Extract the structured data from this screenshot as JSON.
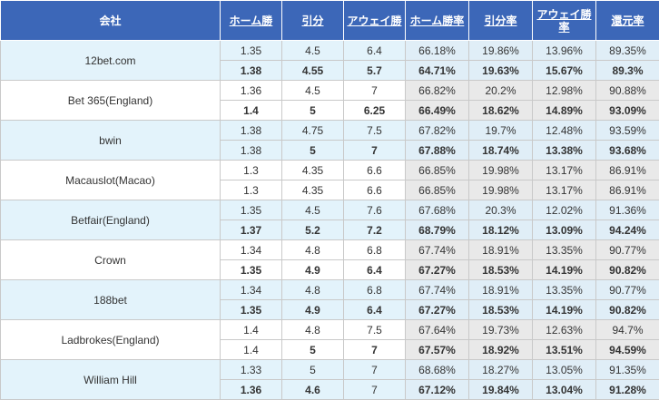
{
  "headers": {
    "company": "会社",
    "home": "ホーム勝",
    "draw": "引分",
    "away": "アウェイ勝",
    "home_rate": "ホーム勝率",
    "draw_rate": "引分率",
    "away_rate": "アウェイ勝率",
    "return_rate": "還元率"
  },
  "colors": {
    "header_bg": "#3c67b8",
    "up": "#c00000",
    "down": "#1f8a1f",
    "alt_row": "#e3f3fb"
  },
  "rows": [
    {
      "company": "12bet.com",
      "initial": {
        "home": "1.35",
        "draw": "4.5",
        "away": "6.4",
        "home_rate": "66.18%",
        "draw_rate": "19.86%",
        "away_rate": "13.96%",
        "return_rate": "89.35%"
      },
      "live": {
        "home": "1.38",
        "draw": "4.55",
        "away": "5.7",
        "home_rate": "64.71%",
        "draw_rate": "19.63%",
        "away_rate": "15.67%",
        "return_rate": "89.3%"
      },
      "trend": {
        "home": "red",
        "draw": "red",
        "away": "green",
        "home_rate": "green",
        "draw_rate": "green",
        "away_rate": "red",
        "return_rate": "green"
      }
    },
    {
      "company": "Bet 365(England)",
      "initial": {
        "home": "1.36",
        "draw": "4.5",
        "away": "7",
        "home_rate": "66.82%",
        "draw_rate": "20.2%",
        "away_rate": "12.98%",
        "return_rate": "90.88%"
      },
      "live": {
        "home": "1.4",
        "draw": "5",
        "away": "6.25",
        "home_rate": "66.49%",
        "draw_rate": "18.62%",
        "away_rate": "14.89%",
        "return_rate": "93.09%"
      },
      "trend": {
        "home": "red",
        "draw": "red",
        "away": "green",
        "home_rate": "green",
        "draw_rate": "green",
        "away_rate": "red",
        "return_rate": "red"
      }
    },
    {
      "company": "bwin",
      "initial": {
        "home": "1.38",
        "draw": "4.75",
        "away": "7.5",
        "home_rate": "67.82%",
        "draw_rate": "19.7%",
        "away_rate": "12.48%",
        "return_rate": "93.59%"
      },
      "live": {
        "home": "1.38",
        "draw": "5",
        "away": "7",
        "home_rate": "67.88%",
        "draw_rate": "18.74%",
        "away_rate": "13.38%",
        "return_rate": "93.68%"
      },
      "trend": {
        "home": "",
        "draw": "red",
        "away": "green",
        "home_rate": "red",
        "draw_rate": "green",
        "away_rate": "red",
        "return_rate": "red"
      }
    },
    {
      "company": "Macauslot(Macao)",
      "initial": {
        "home": "1.3",
        "draw": "4.35",
        "away": "6.6",
        "home_rate": "66.85%",
        "draw_rate": "19.98%",
        "away_rate": "13.17%",
        "return_rate": "86.91%"
      },
      "live": {
        "home": "1.3",
        "draw": "4.35",
        "away": "6.6",
        "home_rate": "66.85%",
        "draw_rate": "19.98%",
        "away_rate": "13.17%",
        "return_rate": "86.91%"
      },
      "trend": {
        "home": "",
        "draw": "",
        "away": "",
        "home_rate": "",
        "draw_rate": "",
        "away_rate": "",
        "return_rate": ""
      }
    },
    {
      "company": "Betfair(England)",
      "initial": {
        "home": "1.35",
        "draw": "4.5",
        "away": "7.6",
        "home_rate": "67.68%",
        "draw_rate": "20.3%",
        "away_rate": "12.02%",
        "return_rate": "91.36%"
      },
      "live": {
        "home": "1.37",
        "draw": "5.2",
        "away": "7.2",
        "home_rate": "68.79%",
        "draw_rate": "18.12%",
        "away_rate": "13.09%",
        "return_rate": "94.24%"
      },
      "trend": {
        "home": "red",
        "draw": "red",
        "away": "green",
        "home_rate": "red",
        "draw_rate": "green",
        "away_rate": "red",
        "return_rate": "red"
      }
    },
    {
      "company": "Crown",
      "initial": {
        "home": "1.34",
        "draw": "4.8",
        "away": "6.8",
        "home_rate": "67.74%",
        "draw_rate": "18.91%",
        "away_rate": "13.35%",
        "return_rate": "90.77%"
      },
      "live": {
        "home": "1.35",
        "draw": "4.9",
        "away": "6.4",
        "home_rate": "67.27%",
        "draw_rate": "18.53%",
        "away_rate": "14.19%",
        "return_rate": "90.82%"
      },
      "trend": {
        "home": "red",
        "draw": "red",
        "away": "green",
        "home_rate": "green",
        "draw_rate": "green",
        "away_rate": "red",
        "return_rate": "red"
      }
    },
    {
      "company": "188bet",
      "initial": {
        "home": "1.34",
        "draw": "4.8",
        "away": "6.8",
        "home_rate": "67.74%",
        "draw_rate": "18.91%",
        "away_rate": "13.35%",
        "return_rate": "90.77%"
      },
      "live": {
        "home": "1.35",
        "draw": "4.9",
        "away": "6.4",
        "home_rate": "67.27%",
        "draw_rate": "18.53%",
        "away_rate": "14.19%",
        "return_rate": "90.82%"
      },
      "trend": {
        "home": "red",
        "draw": "red",
        "away": "green",
        "home_rate": "green",
        "draw_rate": "green",
        "away_rate": "red",
        "return_rate": "red"
      }
    },
    {
      "company": "Ladbrokes(England)",
      "initial": {
        "home": "1.4",
        "draw": "4.8",
        "away": "7.5",
        "home_rate": "67.64%",
        "draw_rate": "19.73%",
        "away_rate": "12.63%",
        "return_rate": "94.7%"
      },
      "live": {
        "home": "1.4",
        "draw": "5",
        "away": "7",
        "home_rate": "67.57%",
        "draw_rate": "18.92%",
        "away_rate": "13.51%",
        "return_rate": "94.59%"
      },
      "trend": {
        "home": "",
        "draw": "red",
        "away": "green",
        "home_rate": "green",
        "draw_rate": "green",
        "away_rate": "red",
        "return_rate": "green"
      }
    },
    {
      "company": "William Hill",
      "initial": {
        "home": "1.33",
        "draw": "5",
        "away": "7",
        "home_rate": "68.68%",
        "draw_rate": "18.27%",
        "away_rate": "13.05%",
        "return_rate": "91.35%"
      },
      "live": {
        "home": "1.36",
        "draw": "4.6",
        "away": "7",
        "home_rate": "67.12%",
        "draw_rate": "19.84%",
        "away_rate": "13.04%",
        "return_rate": "91.28%"
      },
      "trend": {
        "home": "red",
        "draw": "green",
        "away": "",
        "home_rate": "green",
        "draw_rate": "red",
        "away_rate": "green",
        "return_rate": "green"
      }
    }
  ]
}
